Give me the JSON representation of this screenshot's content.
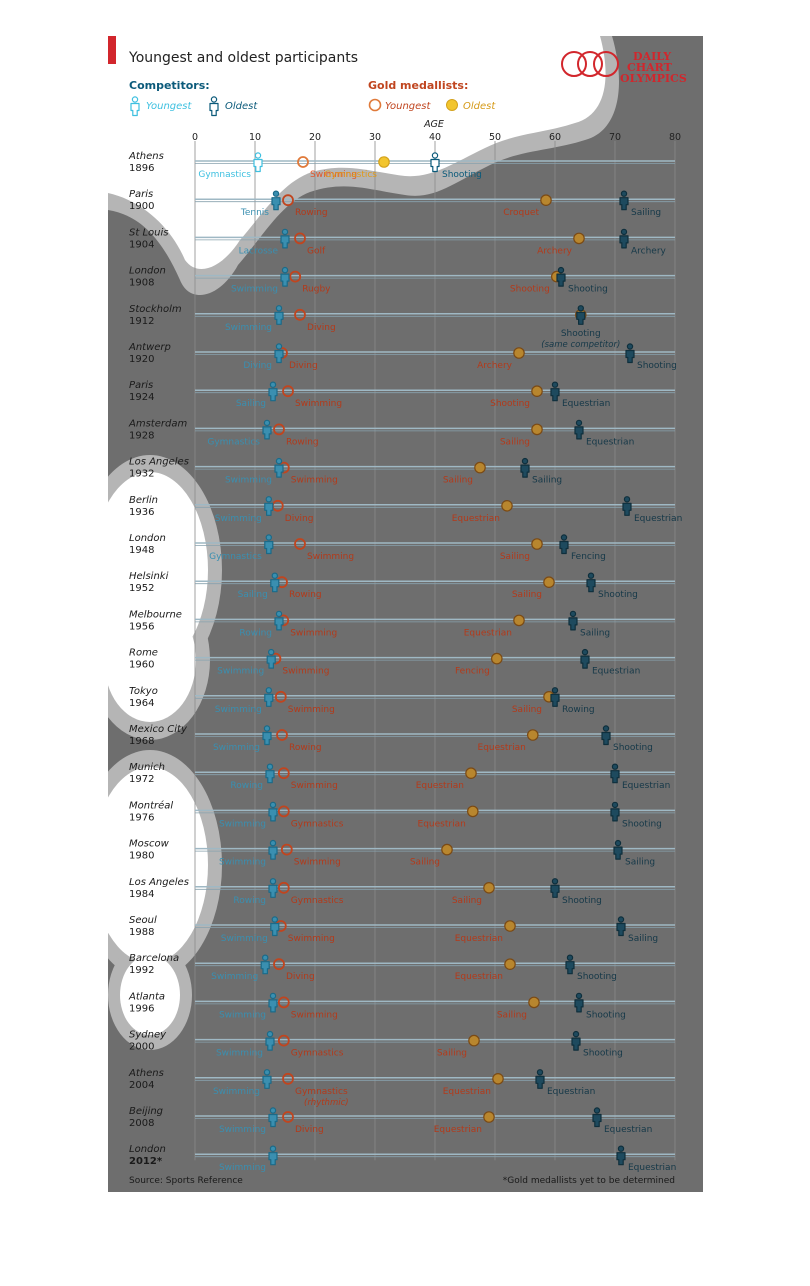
{
  "header": {
    "title": "Youngest and oldest participants",
    "logo_line1": "DAILY",
    "logo_line2": "CHART",
    "logo_line3": "OLYMPICS"
  },
  "legend": {
    "competitors_label": "Competitors:",
    "competitors_youngest": "Youngest",
    "competitors_oldest": "Oldest",
    "medallists_label": "Gold medallists:",
    "medallists_youngest": "Youngest",
    "medallists_oldest": "Oldest"
  },
  "colors": {
    "background": "#6e6e6e",
    "competitor_youngest": "#3a8fb0",
    "competitor_oldest": "#1e4a5e",
    "medal_youngest": "#c0451f",
    "medal_oldest": "#b8862e",
    "brand_red": "#d2262c",
    "title_blue": "#0b5a7a"
  },
  "footer": {
    "source": "Source: Sports Reference",
    "note": "*Gold medallists yet to be determined"
  },
  "chart_data": {
    "type": "scatter",
    "title": "Youngest and oldest participants",
    "xlabel": "AGE",
    "xlim": [
      0,
      80
    ],
    "xticks": [
      0,
      10,
      20,
      30,
      40,
      50,
      60,
      70,
      80
    ],
    "grid": true,
    "legend_position": "top",
    "games": [
      {
        "city": "Athens",
        "year": "1896",
        "cy": {
          "age": 10.5,
          "sport": "Gymnastics"
        },
        "my": {
          "age": 18,
          "sport": "Swimming"
        },
        "mo": {
          "age": 31.5,
          "sport": "Gymnastics"
        },
        "co": {
          "age": 40,
          "sport": "Shooting"
        }
      },
      {
        "city": "Paris",
        "year": "1900",
        "cy": {
          "age": 13.5,
          "sport": "Tennis"
        },
        "my": {
          "age": 15.5,
          "sport": "Rowing"
        },
        "mo": {
          "age": 58.5,
          "sport": "Croquet"
        },
        "co": {
          "age": 71.5,
          "sport": "Sailing"
        }
      },
      {
        "city": "St Louis",
        "year": "1904",
        "cy": {
          "age": 15,
          "sport": "Lacrosse"
        },
        "my": {
          "age": 17.5,
          "sport": "Golf"
        },
        "mo": {
          "age": 64,
          "sport": "Archery"
        },
        "co": {
          "age": 71.5,
          "sport": "Archery"
        }
      },
      {
        "city": "London",
        "year": "1908",
        "cy": {
          "age": 15,
          "sport": "Swimming"
        },
        "my": {
          "age": 16.7,
          "sport": "Rugby"
        },
        "mo": {
          "age": 60.3,
          "sport": "Shooting"
        },
        "co": {
          "age": 61,
          "sport": "Shooting"
        }
      },
      {
        "city": "Stockholm",
        "year": "1912",
        "cy": {
          "age": 14,
          "sport": "Swimming"
        },
        "my": {
          "age": 17.5,
          "sport": "Diving"
        },
        "mo": {
          "age": 64.3,
          "sport": "Shooting"
        },
        "co": {
          "age": 64.3,
          "sport": "Shooting"
        },
        "note": "(same competitor)"
      },
      {
        "city": "Antwerp",
        "year": "1920",
        "cy": {
          "age": 14,
          "sport": "Diving"
        },
        "my": {
          "age": 14.5,
          "sport": "Diving"
        },
        "mo": {
          "age": 54,
          "sport": "Archery"
        },
        "co": {
          "age": 72.5,
          "sport": "Shooting"
        }
      },
      {
        "city": "Paris",
        "year": "1924",
        "cy": {
          "age": 13,
          "sport": "Sailing"
        },
        "my": {
          "age": 15.5,
          "sport": "Swimming"
        },
        "mo": {
          "age": 57,
          "sport": "Shooting"
        },
        "co": {
          "age": 60,
          "sport": "Equestrian"
        }
      },
      {
        "city": "Amsterdam",
        "year": "1928",
        "cy": {
          "age": 12,
          "sport": "Gymnastics"
        },
        "my": {
          "age": 14,
          "sport": "Rowing"
        },
        "mo": {
          "age": 57,
          "sport": "Sailing"
        },
        "co": {
          "age": 64,
          "sport": "Equestrian"
        }
      },
      {
        "city": "Los Angeles",
        "year": "1932",
        "cy": {
          "age": 14,
          "sport": "Swimming"
        },
        "my": {
          "age": 14.8,
          "sport": "Swimming"
        },
        "mo": {
          "age": 47.5,
          "sport": "Sailing"
        },
        "co": {
          "age": 55,
          "sport": "Sailing"
        }
      },
      {
        "city": "Berlin",
        "year": "1936",
        "cy": {
          "age": 12.3,
          "sport": "Swimming"
        },
        "my": {
          "age": 13.8,
          "sport": "Diving"
        },
        "mo": {
          "age": 52,
          "sport": "Equestrian"
        },
        "co": {
          "age": 72,
          "sport": "Equestrian"
        }
      },
      {
        "city": "London",
        "year": "1948",
        "cy": {
          "age": 12.3,
          "sport": "Gymnastics"
        },
        "my": {
          "age": 17.5,
          "sport": "Swimming"
        },
        "mo": {
          "age": 57,
          "sport": "Sailing"
        },
        "co": {
          "age": 61.5,
          "sport": "Fencing"
        }
      },
      {
        "city": "Helsinki",
        "year": "1952",
        "cy": {
          "age": 13.3,
          "sport": "Sailing"
        },
        "my": {
          "age": 14.5,
          "sport": "Rowing"
        },
        "mo": {
          "age": 59,
          "sport": "Sailing"
        },
        "co": {
          "age": 66,
          "sport": "Shooting"
        }
      },
      {
        "city": "Melbourne",
        "year": "1956",
        "cy": {
          "age": 14,
          "sport": "Rowing"
        },
        "my": {
          "age": 14.7,
          "sport": "Swimming"
        },
        "mo": {
          "age": 54,
          "sport": "Equestrian"
        },
        "co": {
          "age": 63,
          "sport": "Sailing"
        }
      },
      {
        "city": "Rome",
        "year": "1960",
        "cy": {
          "age": 12.7,
          "sport": "Swimming"
        },
        "my": {
          "age": 13.4,
          "sport": "Swimming"
        },
        "mo": {
          "age": 50.3,
          "sport": "Fencing"
        },
        "co": {
          "age": 65,
          "sport": "Equestrian"
        }
      },
      {
        "city": "Tokyo",
        "year": "1964",
        "cy": {
          "age": 12.3,
          "sport": "Swimming"
        },
        "my": {
          "age": 14.3,
          "sport": "Swimming"
        },
        "mo": {
          "age": 59,
          "sport": "Sailing"
        },
        "co": {
          "age": 60,
          "sport": "Rowing"
        }
      },
      {
        "city": "Mexico City",
        "year": "1968",
        "cy": {
          "age": 12,
          "sport": "Swimming"
        },
        "my": {
          "age": 14.5,
          "sport": "Rowing"
        },
        "mo": {
          "age": 56.3,
          "sport": "Equestrian"
        },
        "co": {
          "age": 68.5,
          "sport": "Shooting"
        }
      },
      {
        "city": "Munich",
        "year": "1972",
        "cy": {
          "age": 12.5,
          "sport": "Rowing"
        },
        "my": {
          "age": 14.8,
          "sport": "Swimming"
        },
        "mo": {
          "age": 46,
          "sport": "Equestrian"
        },
        "co": {
          "age": 70,
          "sport": "Equestrian"
        }
      },
      {
        "city": "Montréal",
        "year": "1976",
        "cy": {
          "age": 13,
          "sport": "Swimming"
        },
        "my": {
          "age": 14.8,
          "sport": "Gymnastics"
        },
        "mo": {
          "age": 46.3,
          "sport": "Equestrian"
        },
        "co": {
          "age": 70,
          "sport": "Shooting"
        }
      },
      {
        "city": "Moscow",
        "year": "1980",
        "cy": {
          "age": 13,
          "sport": "Swimming"
        },
        "my": {
          "age": 15.3,
          "sport": "Swimming"
        },
        "mo": {
          "age": 42,
          "sport": "Sailing"
        },
        "co": {
          "age": 70.5,
          "sport": "Sailing"
        }
      },
      {
        "city": "Los Angeles",
        "year": "1984",
        "cy": {
          "age": 13,
          "sport": "Rowing"
        },
        "my": {
          "age": 14.8,
          "sport": "Gymnastics"
        },
        "mo": {
          "age": 49,
          "sport": "Sailing"
        },
        "co": {
          "age": 60,
          "sport": "Shooting"
        }
      },
      {
        "city": "Seoul",
        "year": "1988",
        "cy": {
          "age": 13.3,
          "sport": "Swimming"
        },
        "my": {
          "age": 14.3,
          "sport": "Swimming"
        },
        "mo": {
          "age": 52.5,
          "sport": "Equestrian"
        },
        "co": {
          "age": 71,
          "sport": "Sailing"
        }
      },
      {
        "city": "Barcelona",
        "year": "1992",
        "cy": {
          "age": 11.7,
          "sport": "Swimming"
        },
        "my": {
          "age": 14,
          "sport": "Diving"
        },
        "mo": {
          "age": 52.5,
          "sport": "Equestrian"
        },
        "co": {
          "age": 62.5,
          "sport": "Shooting"
        }
      },
      {
        "city": "Atlanta",
        "year": "1996",
        "cy": {
          "age": 13,
          "sport": "Swimming"
        },
        "my": {
          "age": 14.8,
          "sport": "Swimming"
        },
        "mo": {
          "age": 56.5,
          "sport": "Sailing"
        },
        "co": {
          "age": 64,
          "sport": "Shooting"
        }
      },
      {
        "city": "Sydney",
        "year": "2000",
        "cy": {
          "age": 12.5,
          "sport": "Swimming"
        },
        "my": {
          "age": 14.8,
          "sport": "Gymnastics"
        },
        "mo": {
          "age": 46.5,
          "sport": "Sailing"
        },
        "co": {
          "age": 63.5,
          "sport": "Shooting"
        }
      },
      {
        "city": "Athens",
        "year": "2004",
        "cy": {
          "age": 12,
          "sport": "Swimming"
        },
        "my": {
          "age": 15.5,
          "sport": "Gymnastics",
          "sub": "(rhythmic)"
        },
        "mo": {
          "age": 50.5,
          "sport": "Equestrian"
        },
        "co": {
          "age": 57.5,
          "sport": "Equestrian"
        }
      },
      {
        "city": "Beijing",
        "year": "2008",
        "cy": {
          "age": 13,
          "sport": "Swimming"
        },
        "my": {
          "age": 15.5,
          "sport": "Diving"
        },
        "mo": {
          "age": 49,
          "sport": "Equestrian"
        },
        "co": {
          "age": 67,
          "sport": "Equestrian"
        }
      },
      {
        "city": "London",
        "year": "2012*",
        "cy": {
          "age": 13,
          "sport": "Swimming"
        },
        "co": {
          "age": 71,
          "sport": "Equestrian"
        }
      }
    ]
  }
}
